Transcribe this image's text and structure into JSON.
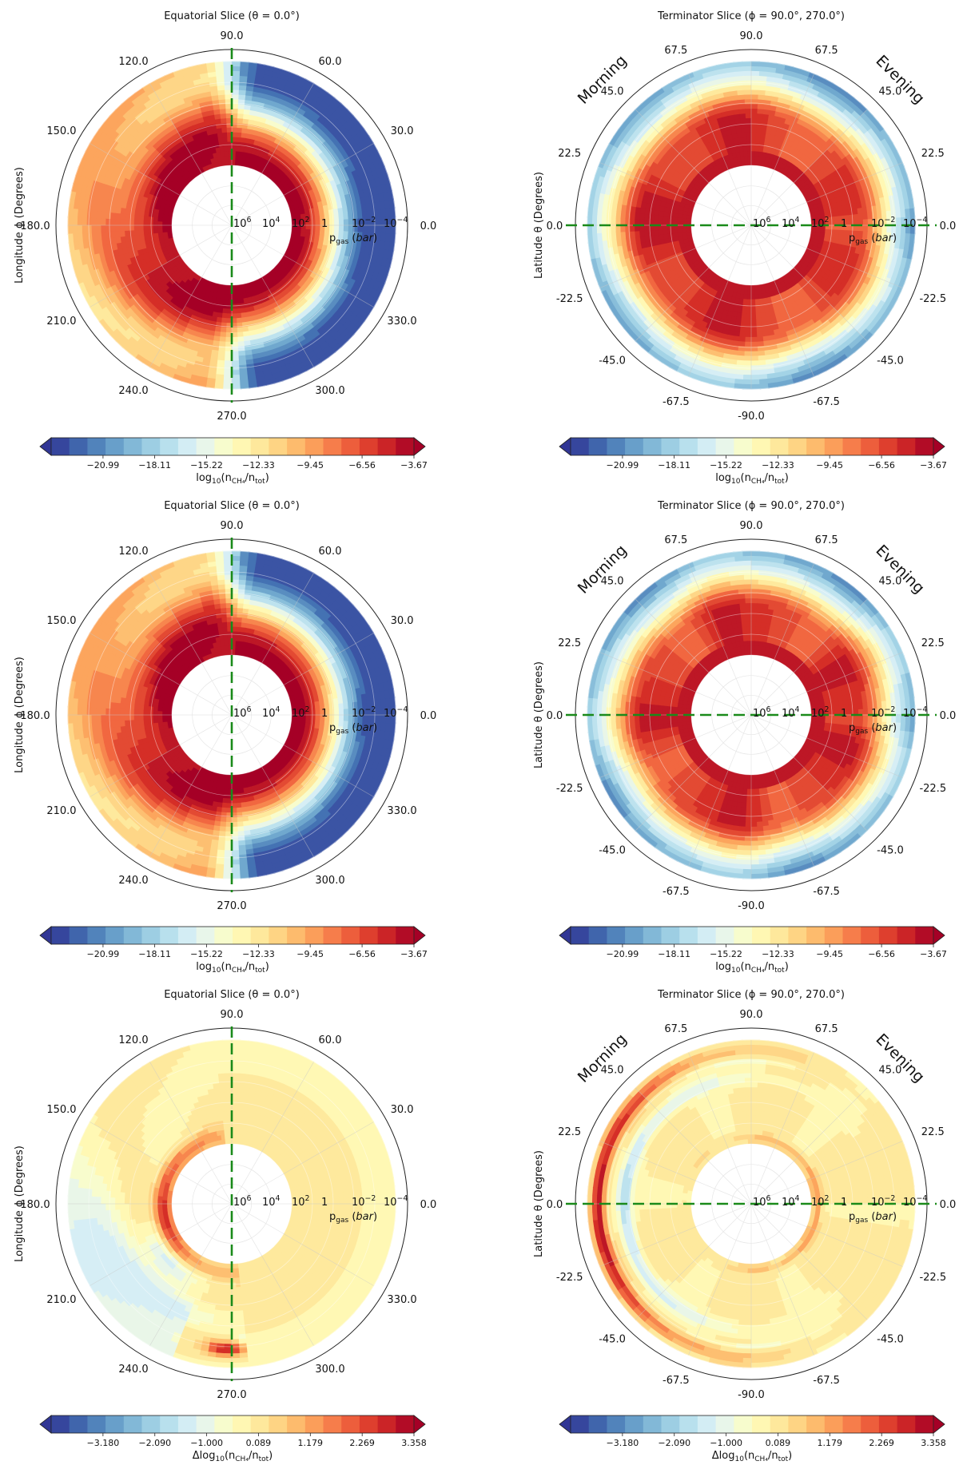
{
  "common": {
    "pressure_labels": [
      "10^6",
      "10^4",
      "10^2",
      "1",
      "10^-2",
      "10^-4"
    ],
    "pgas_label": "p_gas (bar)",
    "eq_angle_ticks": [
      "0.0",
      "30.0",
      "60.0",
      "90.0",
      "120.0",
      "150.0",
      "180.0",
      "210.0",
      "240.0",
      "270.0",
      "300.0",
      "330.0"
    ],
    "term_angle_ticks": [
      "0.0",
      "22.5",
      "45.0",
      "67.5",
      "90.0",
      "67.5",
      "45.0",
      "22.5",
      "0.0",
      "-22.5",
      "-45.0",
      "-67.5",
      "-90.0",
      "-67.5",
      "-45.0",
      "-22.5"
    ],
    "eq_ylabel": "Longitude ϕ (Degrees)",
    "term_ylabel": "Latitude θ (Degrees)",
    "morning_label": "Morning",
    "evening_label": "Evening",
    "abs_colorbar": {
      "ticks": [
        "-20.99",
        "-18.11",
        "-15.22",
        "-12.33",
        "-9.45",
        "-6.56",
        "-3.67"
      ],
      "label": "log10(nCH4/ntot)",
      "range": [
        -23.88,
        -3.67
      ]
    },
    "diff_colorbar": {
      "ticks": [
        "-3.180",
        "-2.090",
        "-1.000",
        "0.089",
        "1.179",
        "2.269",
        "3.358"
      ],
      "label": "Δlog10(nCH4/ntot)",
      "range": [
        -4.27,
        3.358
      ]
    },
    "colors": {
      "colormap": [
        "#313695",
        "#4575b4",
        "#74add1",
        "#abd9e9",
        "#e0f3f8",
        "#ffffbf",
        "#fee090",
        "#fdae61",
        "#f46d43",
        "#d73027",
        "#a50026"
      ],
      "dashed_line": "#1a8a1a",
      "grid": "#d9d9d9"
    }
  },
  "chart_data": [
    {
      "type": "heatmap",
      "panel": "equatorial",
      "scale": "absolute",
      "title": "Equatorial Slice (θ = 0.0°)",
      "ylabel": "Longitude ϕ (Degrees)",
      "colorbar_label": "log10(nCH4/ntot)"
    },
    {
      "type": "heatmap",
      "panel": "terminator",
      "scale": "absolute",
      "title": "Terminator Slice (ϕ = 90.0°, 270.0°)",
      "ylabel": "Latitude θ (Degrees)",
      "colorbar_label": "log10(nCH4/ntot)"
    },
    {
      "type": "heatmap",
      "panel": "equatorial",
      "scale": "absolute",
      "title": "Equatorial Slice (θ = 0.0°)",
      "ylabel": "Longitude ϕ (Degrees)",
      "colorbar_label": "log10(nCH4/ntot)"
    },
    {
      "type": "heatmap",
      "panel": "terminator",
      "scale": "absolute",
      "title": "Terminator Slice (ϕ = 90.0°, 270.0°)",
      "ylabel": "Latitude θ (Degrees)",
      "colorbar_label": "log10(nCH4/ntot)"
    },
    {
      "type": "heatmap",
      "panel": "equatorial",
      "scale": "difference",
      "title": "Equatorial Slice (θ = 0.0°)",
      "ylabel": "Longitude ϕ (Degrees)",
      "colorbar_label": "Δlog10(nCH4/ntot)"
    },
    {
      "type": "heatmap",
      "panel": "terminator",
      "scale": "difference",
      "title": "Terminator Slice (ϕ = 90.0°, 270.0°)",
      "ylabel": "Latitude θ (Degrees)",
      "colorbar_label": "Δlog10(nCH4/ntot)"
    }
  ]
}
